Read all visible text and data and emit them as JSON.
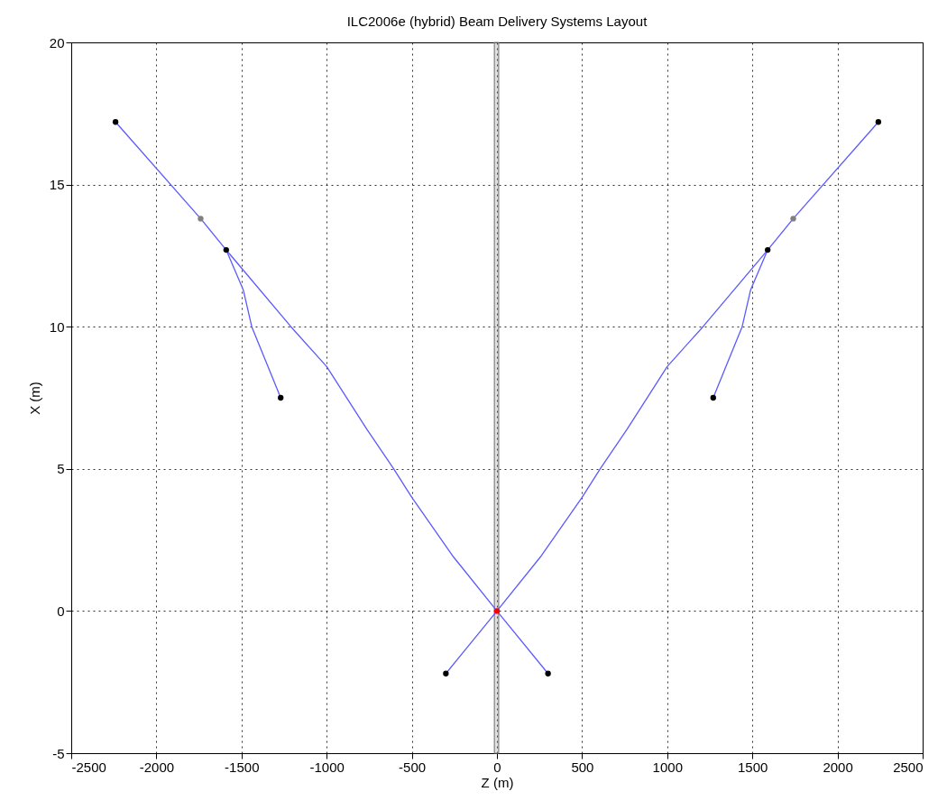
{
  "chart_data": {
    "type": "line",
    "title": "ILC2006e (hybrid) Beam Delivery Systems Layout",
    "xlabel": "Z (m)",
    "ylabel": "X (m)",
    "xlim": [
      -2500,
      2500
    ],
    "xticks": [
      -2500,
      -2000,
      -1500,
      -1000,
      -500,
      0,
      500,
      1000,
      1500,
      2000,
      2500
    ],
    "ylim": [
      -5,
      20
    ],
    "yticks": [
      -5,
      0,
      5,
      10,
      15,
      20
    ],
    "grid": true,
    "bands": [
      {
        "axis": "x",
        "from": -15,
        "to": 10,
        "color": "#808080"
      }
    ],
    "series": [
      {
        "color": "#5a5aff",
        "marker": "none",
        "x": [
          -2240,
          -1740,
          -1590,
          -1210,
          -1000,
          -765,
          -606,
          -500,
          -255,
          0,
          300
        ],
        "values": [
          17.2,
          13.8,
          12.7,
          10,
          8.6,
          6.4,
          5,
          4,
          1.9,
          0,
          -2.2
        ]
      },
      {
        "color": "#5a5aff",
        "marker": "none",
        "x": [
          2240,
          1740,
          1590,
          1210,
          1000,
          765,
          606,
          500,
          255,
          0,
          -300
        ],
        "values": [
          17.2,
          13.8,
          12.7,
          10,
          8.6,
          6.4,
          5,
          4,
          1.9,
          0,
          -2.2
        ]
      },
      {
        "color": "#5a5aff",
        "marker": "none",
        "x": [
          -1590,
          -1490,
          -1440,
          -1270
        ],
        "values": [
          12.7,
          11.3,
          10,
          7.5
        ]
      },
      {
        "color": "#5a5aff",
        "marker": "none",
        "x": [
          1590,
          1490,
          1440,
          1270
        ],
        "values": [
          12.7,
          11.3,
          10,
          7.5
        ]
      },
      {
        "type": "scatter",
        "color": "#000000",
        "marker": "circle",
        "x": [
          -2240,
          -1590,
          -1270,
          -300,
          300,
          1270,
          1590,
          2240
        ],
        "values": [
          17.2,
          12.7,
          7.5,
          -2.2,
          -2.2,
          7.5,
          12.7,
          17.2
        ]
      },
      {
        "type": "scatter",
        "color": "#808080",
        "marker": "circle",
        "x": [
          -1740,
          1740
        ],
        "values": [
          13.8,
          13.8
        ]
      },
      {
        "type": "scatter",
        "color": "#ff0000",
        "marker": "circle",
        "x": [
          0
        ],
        "values": [
          0
        ]
      }
    ]
  }
}
